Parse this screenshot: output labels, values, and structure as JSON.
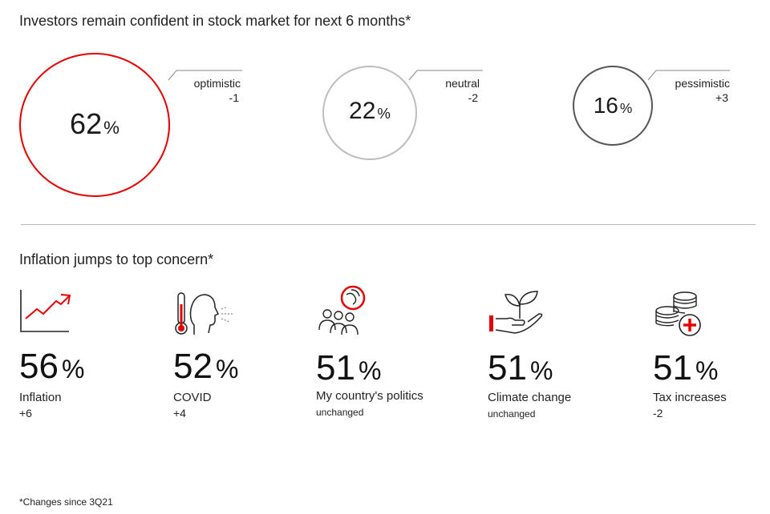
{
  "sentiment": {
    "title": "Investors remain confident in stock market for next 6 months*",
    "items": [
      {
        "value": "62",
        "unit": "%",
        "label": "optimistic",
        "change": "-1",
        "color": "#e60000"
      },
      {
        "value": "22",
        "unit": "%",
        "label": "neutral",
        "change": "-2",
        "color": "#bdbdbd"
      },
      {
        "value": "16",
        "unit": "%",
        "label": "pessimistic",
        "change": "+3",
        "color": "#555555"
      }
    ]
  },
  "concerns": {
    "title": "Inflation jumps to top concern*",
    "items": [
      {
        "icon": "rising-chart-icon",
        "value": "56",
        "unit": "%",
        "label": "Inflation",
        "change": "+6"
      },
      {
        "icon": "thermometer-face-icon",
        "value": "52",
        "unit": "%",
        "label": "COVID",
        "change": "+4"
      },
      {
        "icon": "people-globe-icon",
        "value": "51",
        "unit": "%",
        "label": "My country's politics",
        "change": "unchanged"
      },
      {
        "icon": "plant-hand-icon",
        "value": "51",
        "unit": "%",
        "label": "Climate change",
        "change": "unchanged"
      },
      {
        "icon": "coins-plus-icon",
        "value": "51",
        "unit": "%",
        "label": "Tax increases",
        "change": "-2"
      }
    ]
  },
  "footnote": "*Changes since 3Q21",
  "colors": {
    "accent": "#e60000",
    "text": "#1a1a1a",
    "divider": "#b8b8b8"
  }
}
